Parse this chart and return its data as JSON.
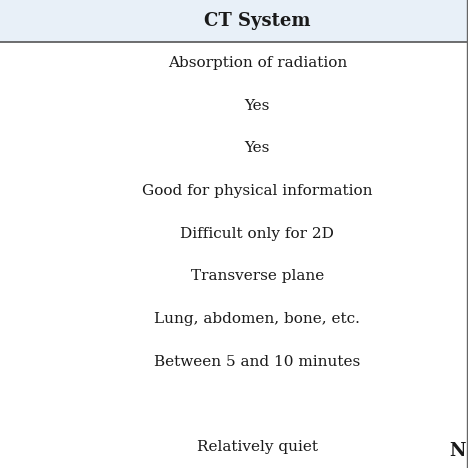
{
  "header": "CT System",
  "header_bg": "#e8f0f8",
  "overall_bg": "#e8f0f8",
  "body_bg": "#ffffff",
  "header_fontsize": 13,
  "rows": [
    "Absorption of radiation",
    "Yes",
    "Yes",
    "Good for physical information",
    "Difficult only for 2D",
    "Transverse plane",
    "Lung, abdomen, bone, etc.",
    "Between 5 and 10 minutes",
    "",
    "Relatively quiet"
  ],
  "row_fontsize": 11,
  "text_color": "#1a1a1a",
  "border_color": "#666666",
  "header_line_color": "#555555",
  "n_label": "N",
  "n_fontsize": 13
}
